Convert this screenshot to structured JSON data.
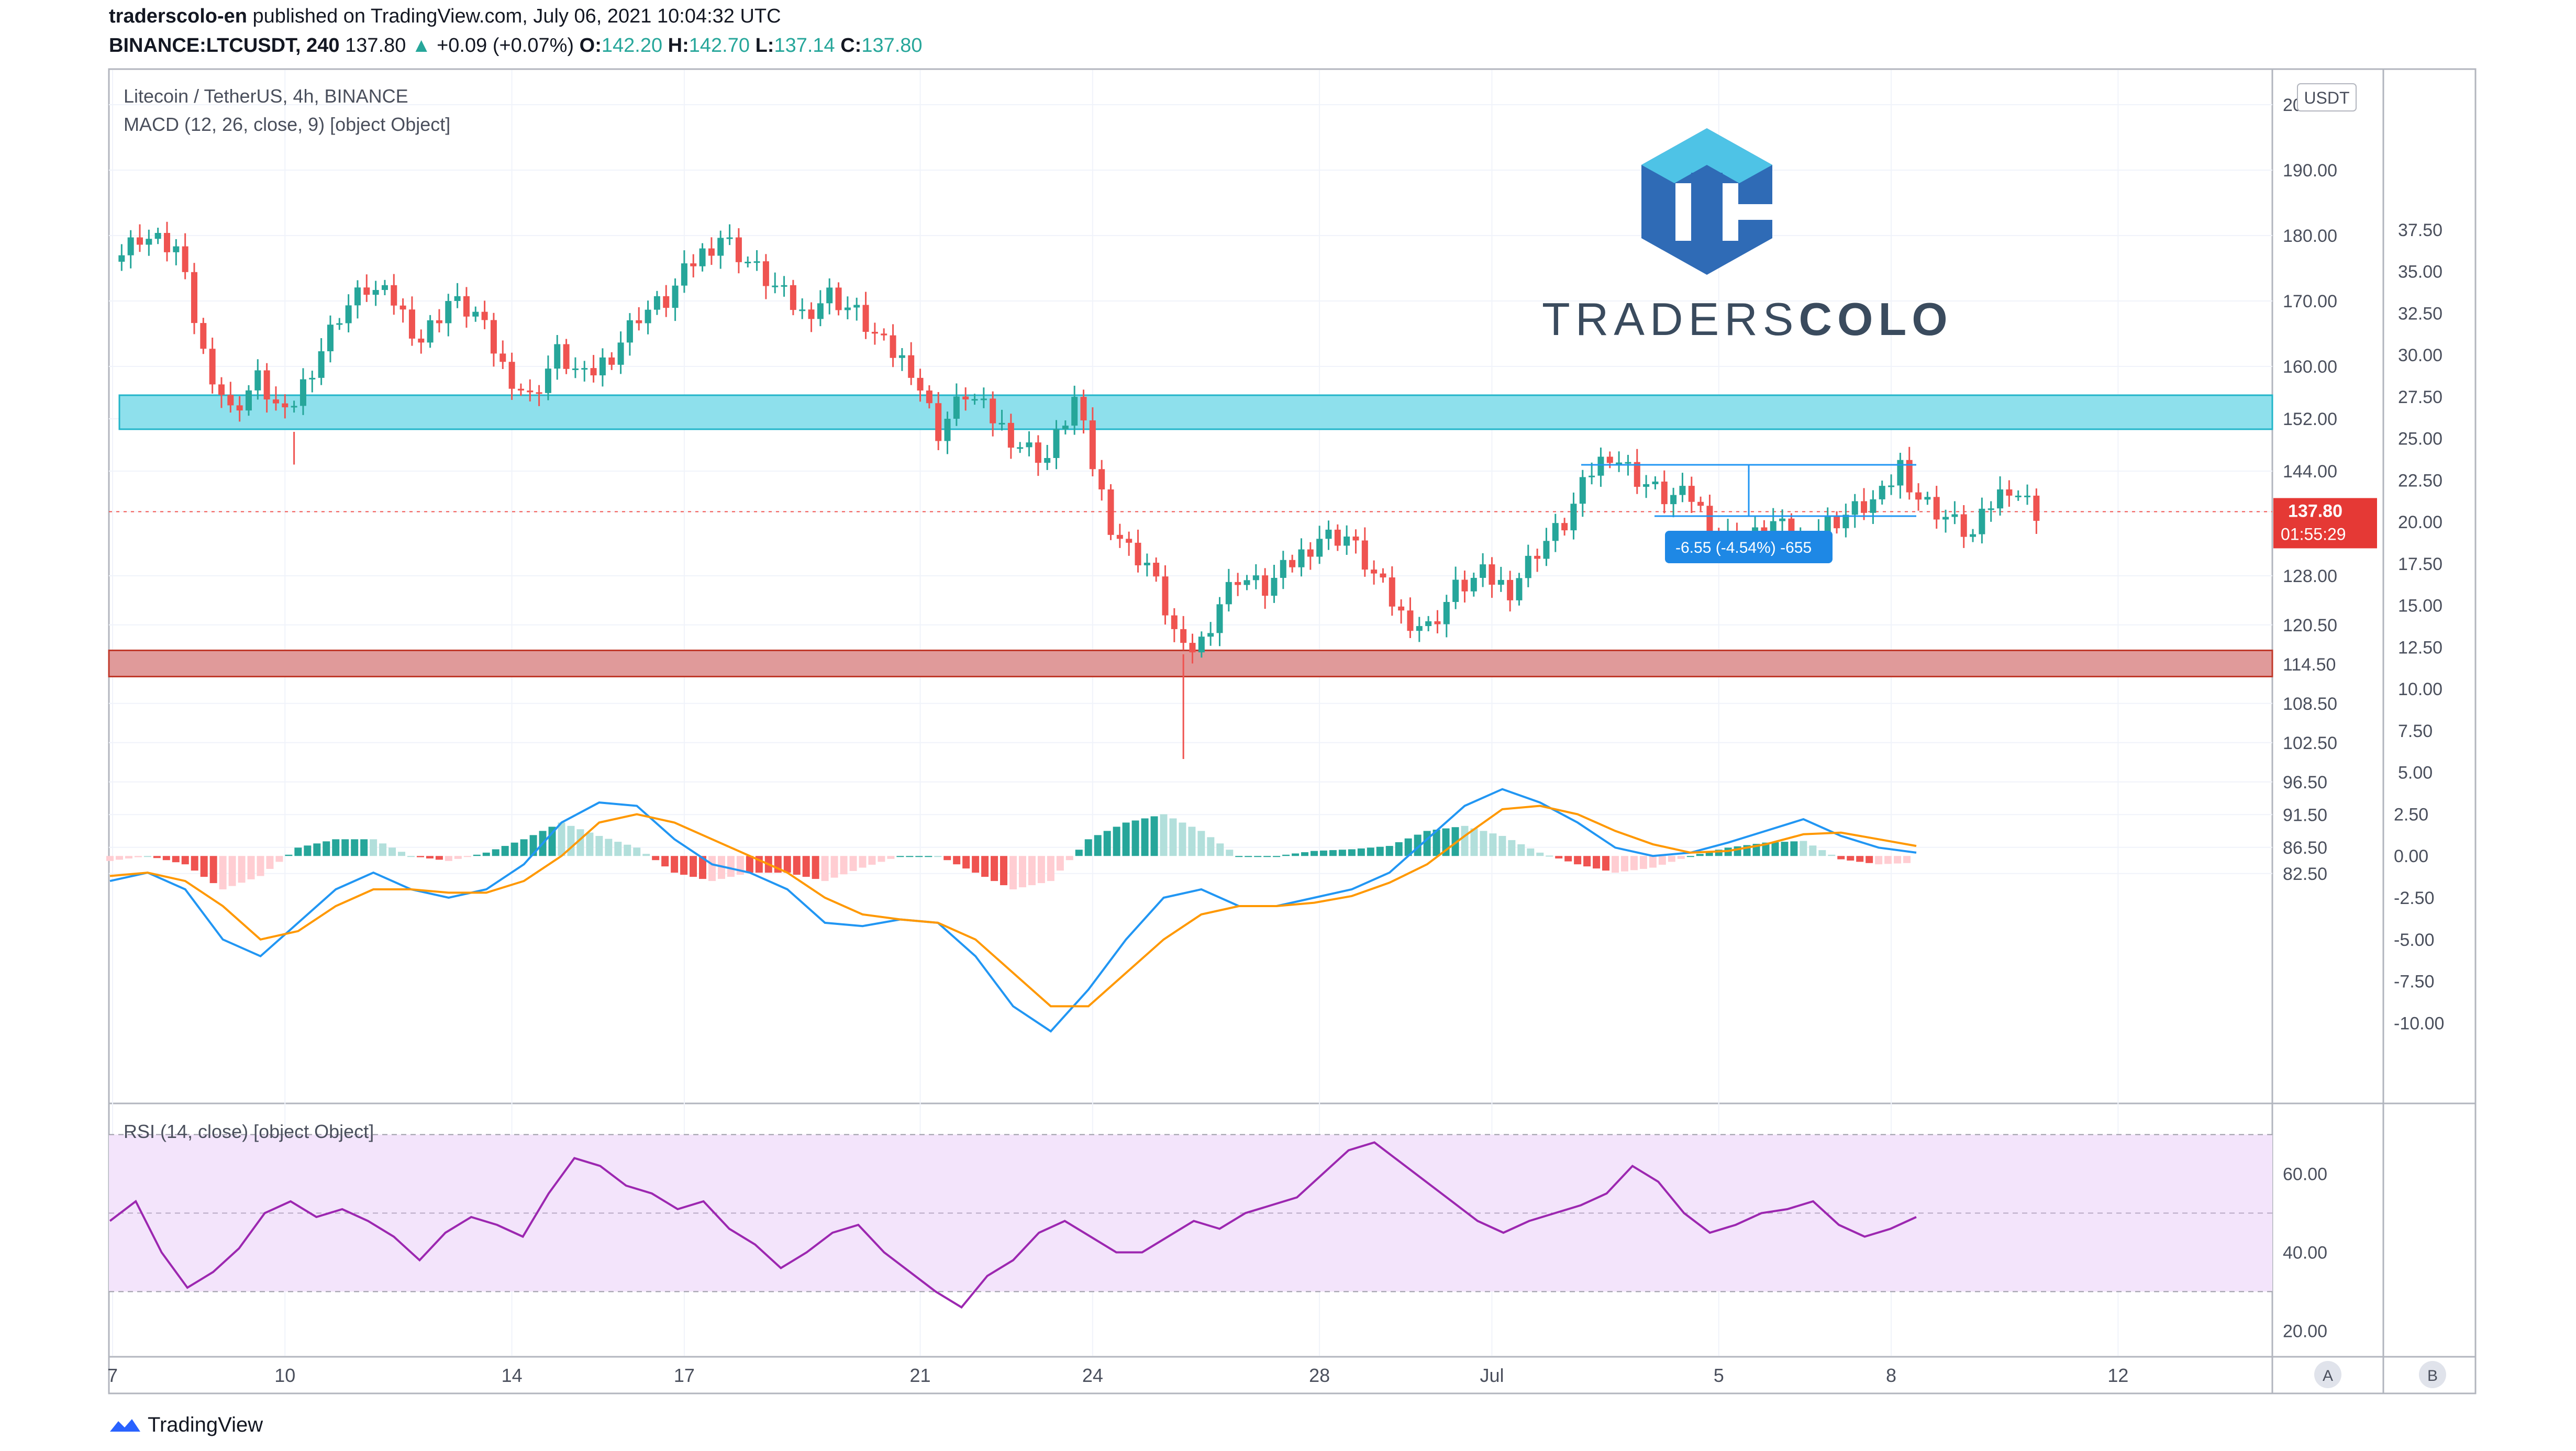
{
  "header": {
    "publisher": "traderscolo-en",
    "published_text": "published on TradingView.com, July 06, 2021 10:04:32 UTC",
    "symbol": "BINANCE:LTCUSDT, 240",
    "last": "137.80",
    "change_arrow": "▲",
    "change": "+0.09 (+0.07%)",
    "o_label": "O:",
    "o": "142.20",
    "h_label": "H:",
    "h": "142.70",
    "l_label": "L:",
    "l": "137.14",
    "c_label": "C:",
    "c": "137.80"
  },
  "legend": {
    "title": "Litecoin / TetherUS, 4h, BINANCE",
    "macd": "MACD (12, 26, close, 9) [object Object]",
    "rsi": "RSI (14, close) [object Object]"
  },
  "watermark": {
    "text_light": "TRADERS",
    "text_bold": "COLO"
  },
  "currency_badge": "USDT",
  "price_tag": {
    "value": "137.80",
    "countdown": "01:55:29"
  },
  "measure_label": "-6.55 (-4.54%) -655",
  "footer": {
    "brand": "TradingView"
  },
  "buttons": {
    "a": "A",
    "b": "B"
  },
  "colors": {
    "up": "#26a69a",
    "down": "#ef5350",
    "macd": "#2196f3",
    "signal": "#ff9800",
    "rsi": "#9c27b0",
    "resistance_zone": "#8ee0ec",
    "support_zone": "#e09a9a"
  },
  "chart_data": [
    {
      "type": "candlestick",
      "title": "Litecoin / TetherUS, 4h, BINANCE",
      "x_ticks": [
        "7",
        "10",
        "14",
        "17",
        "21",
        "24",
        "28",
        "Jul",
        "5",
        "8",
        "12"
      ],
      "price_ticks": [
        "200.00",
        "190.00",
        "180.00",
        "170.00",
        "160.00",
        "152.00",
        "144.00",
        "137.80",
        "128.00",
        "120.50",
        "114.50",
        "108.50",
        "102.50",
        "96.50",
        "91.50",
        "86.50",
        "82.50"
      ],
      "ylim": [
        80,
        204
      ],
      "zones": [
        {
          "name": "resistance",
          "from": 150.4,
          "to": 155.6
        },
        {
          "name": "support",
          "from": 112.6,
          "to": 116.6
        }
      ],
      "last_price": 137.8,
      "close_path": [
        {
          "t": 0,
          "p": 176
        },
        {
          "t": 3,
          "p": 180
        },
        {
          "t": 7,
          "p": 178
        },
        {
          "t": 10,
          "p": 162
        },
        {
          "t": 13,
          "p": 153
        },
        {
          "t": 16,
          "p": 158
        },
        {
          "t": 19,
          "p": 152
        },
        {
          "t": 22,
          "p": 160
        },
        {
          "t": 25,
          "p": 168
        },
        {
          "t": 28,
          "p": 172
        },
        {
          "t": 31,
          "p": 170
        },
        {
          "t": 34,
          "p": 164
        },
        {
          "t": 37,
          "p": 170
        },
        {
          "t": 40,
          "p": 168
        },
        {
          "t": 43,
          "p": 160
        },
        {
          "t": 46,
          "p": 155
        },
        {
          "t": 49,
          "p": 162
        },
        {
          "t": 52,
          "p": 158
        },
        {
          "t": 55,
          "p": 162
        },
        {
          "t": 58,
          "p": 168
        },
        {
          "t": 61,
          "p": 170
        },
        {
          "t": 64,
          "p": 176
        },
        {
          "t": 67,
          "p": 180
        },
        {
          "t": 70,
          "p": 176
        },
        {
          "t": 73,
          "p": 172
        },
        {
          "t": 76,
          "p": 168
        },
        {
          "t": 79,
          "p": 171
        },
        {
          "t": 82,
          "p": 168
        },
        {
          "t": 85,
          "p": 163
        },
        {
          "t": 88,
          "p": 160
        },
        {
          "t": 91,
          "p": 150
        },
        {
          "t": 94,
          "p": 156
        },
        {
          "t": 97,
          "p": 152
        },
        {
          "t": 100,
          "p": 148
        },
        {
          "t": 103,
          "p": 146
        },
        {
          "t": 106,
          "p": 155
        },
        {
          "t": 108,
          "p": 145
        },
        {
          "t": 110,
          "p": 136
        },
        {
          "t": 112,
          "p": 132
        },
        {
          "t": 114,
          "p": 130
        },
        {
          "t": 116,
          "p": 123
        },
        {
          "t": 118,
          "p": 116
        },
        {
          "t": 120,
          "p": 118
        },
        {
          "t": 122,
          "p": 124
        },
        {
          "t": 124,
          "p": 128
        },
        {
          "t": 127,
          "p": 126
        },
        {
          "t": 130,
          "p": 130
        },
        {
          "t": 133,
          "p": 134
        },
        {
          "t": 136,
          "p": 134
        },
        {
          "t": 139,
          "p": 128
        },
        {
          "t": 142,
          "p": 122
        },
        {
          "t": 145,
          "p": 120
        },
        {
          "t": 148,
          "p": 126
        },
        {
          "t": 151,
          "p": 128
        },
        {
          "t": 154,
          "p": 126
        },
        {
          "t": 157,
          "p": 132
        },
        {
          "t": 160,
          "p": 136
        },
        {
          "t": 163,
          "p": 144
        },
        {
          "t": 165,
          "p": 147
        },
        {
          "t": 168,
          "p": 143
        },
        {
          "t": 171,
          "p": 140
        },
        {
          "t": 174,
          "p": 140
        },
        {
          "t": 177,
          "p": 134
        },
        {
          "t": 180,
          "p": 133
        },
        {
          "t": 183,
          "p": 136
        },
        {
          "t": 186,
          "p": 133
        },
        {
          "t": 189,
          "p": 136
        },
        {
          "t": 192,
          "p": 138
        },
        {
          "t": 195,
          "p": 140
        },
        {
          "t": 197,
          "p": 145
        },
        {
          "t": 199,
          "p": 140
        },
        {
          "t": 201,
          "p": 138
        },
        {
          "t": 203,
          "p": 136
        },
        {
          "t": 205,
          "p": 134
        },
        {
          "t": 207,
          "p": 139
        },
        {
          "t": 209,
          "p": 142
        },
        {
          "t": 212,
          "p": 137.8
        }
      ],
      "x_range": [
        0,
        238
      ]
    },
    {
      "type": "line",
      "title": "MACD (12, 26, close, 9) [object Object]",
      "y_ticks": [
        "2.50",
        "0.00",
        "-2.50",
        "-5.00",
        "-7.50",
        "-10.00"
      ],
      "ylim": [
        -13,
        8
      ],
      "series": [
        {
          "name": "MACD",
          "values": [
            -1.5,
            -1,
            -2,
            -5,
            -6,
            -4,
            -2,
            -1,
            -2,
            -2.5,
            -2,
            -0.5,
            2,
            3.2,
            3,
            1,
            -0.5,
            -1,
            -2,
            -4,
            -4.2,
            -3.8,
            -4,
            -6,
            -9,
            -10.5,
            -8,
            -5,
            -2.5,
            -2,
            -3,
            -3,
            -2.5,
            -2,
            -1,
            1,
            3,
            4,
            3.2,
            2,
            0.5,
            0,
            0.2,
            0.8,
            1.5,
            2.2,
            1.2,
            0.5,
            0.2
          ]
        },
        {
          "name": "Signal",
          "values": [
            -1.2,
            -1,
            -1.5,
            -3,
            -5,
            -4.5,
            -3,
            -2,
            -2,
            -2.2,
            -2.2,
            -1.5,
            0,
            2,
            2.5,
            2,
            1,
            0,
            -1,
            -2.5,
            -3.5,
            -3.8,
            -4,
            -5,
            -7,
            -9,
            -9,
            -7,
            -5,
            -3.5,
            -3,
            -3,
            -2.8,
            -2.4,
            -1.6,
            -0.5,
            1.2,
            2.8,
            3,
            2.5,
            1.5,
            0.7,
            0.2,
            0.3,
            0.7,
            1.3,
            1.4,
            1,
            0.6
          ]
        },
        {
          "name": "Histogram",
          "values": [
            -0.3,
            0,
            -0.5,
            -2,
            -1.2,
            0.5,
            1,
            1,
            0,
            -0.3,
            0.2,
            1,
            2,
            1.2,
            0.5,
            -1,
            -1.5,
            -1,
            -1,
            -1.5,
            -0.7,
            0,
            0,
            -1,
            -2,
            -1.5,
            1,
            2,
            2.5,
            1.5,
            0,
            0,
            0.3,
            0.4,
            0.6,
            1.5,
            1.8,
            1.2,
            0.2,
            -0.5,
            -1,
            -0.7,
            0,
            0.5,
            0.8,
            0.9,
            -0.2,
            -0.5,
            -0.4
          ]
        }
      ]
    },
    {
      "type": "line",
      "title": "RSI (14, close) [object Object]",
      "y_ticks": [
        "60.00",
        "40.00",
        "20.00"
      ],
      "ylim": [
        15,
        75
      ],
      "bands": [
        30,
        70
      ],
      "series": [
        {
          "name": "RSI",
          "values": [
            48,
            53,
            40,
            31,
            35,
            41,
            50,
            53,
            49,
            51,
            48,
            44,
            38,
            45,
            49,
            47,
            44,
            55,
            64,
            62,
            57,
            55,
            51,
            53,
            46,
            42,
            36,
            40,
            45,
            47,
            40,
            35,
            30,
            26,
            34,
            38,
            45,
            48,
            44,
            40,
            40,
            44,
            48,
            46,
            50,
            52,
            54,
            60,
            66,
            68,
            63,
            58,
            53,
            48,
            45,
            48,
            50,
            52,
            55,
            62,
            58,
            50,
            45,
            47,
            50,
            51,
            53,
            47,
            44,
            46,
            49
          ]
        }
      ]
    }
  ]
}
